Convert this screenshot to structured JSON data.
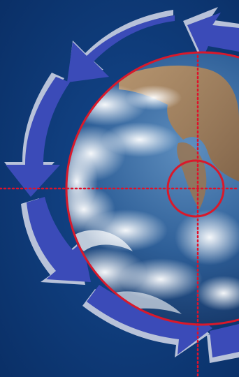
{
  "colors": {
    "background": "#0e3a78",
    "background_deep": "#0a2f66",
    "arrow_fill": "#3b4bb8",
    "arrow_highlight": "#5b69d2",
    "arrow_rim": "#b8c2d9",
    "globe_ring": "#d8192b",
    "crosshair": "#e0112a",
    "ocean": "#2c5f9c",
    "cloud": "#f2f5fa",
    "land": "#b78a5c"
  },
  "icons": {
    "globe": "earth-globe-icon",
    "cycle": "circular-arrows-icon",
    "target": "crosshair-target-icon"
  }
}
